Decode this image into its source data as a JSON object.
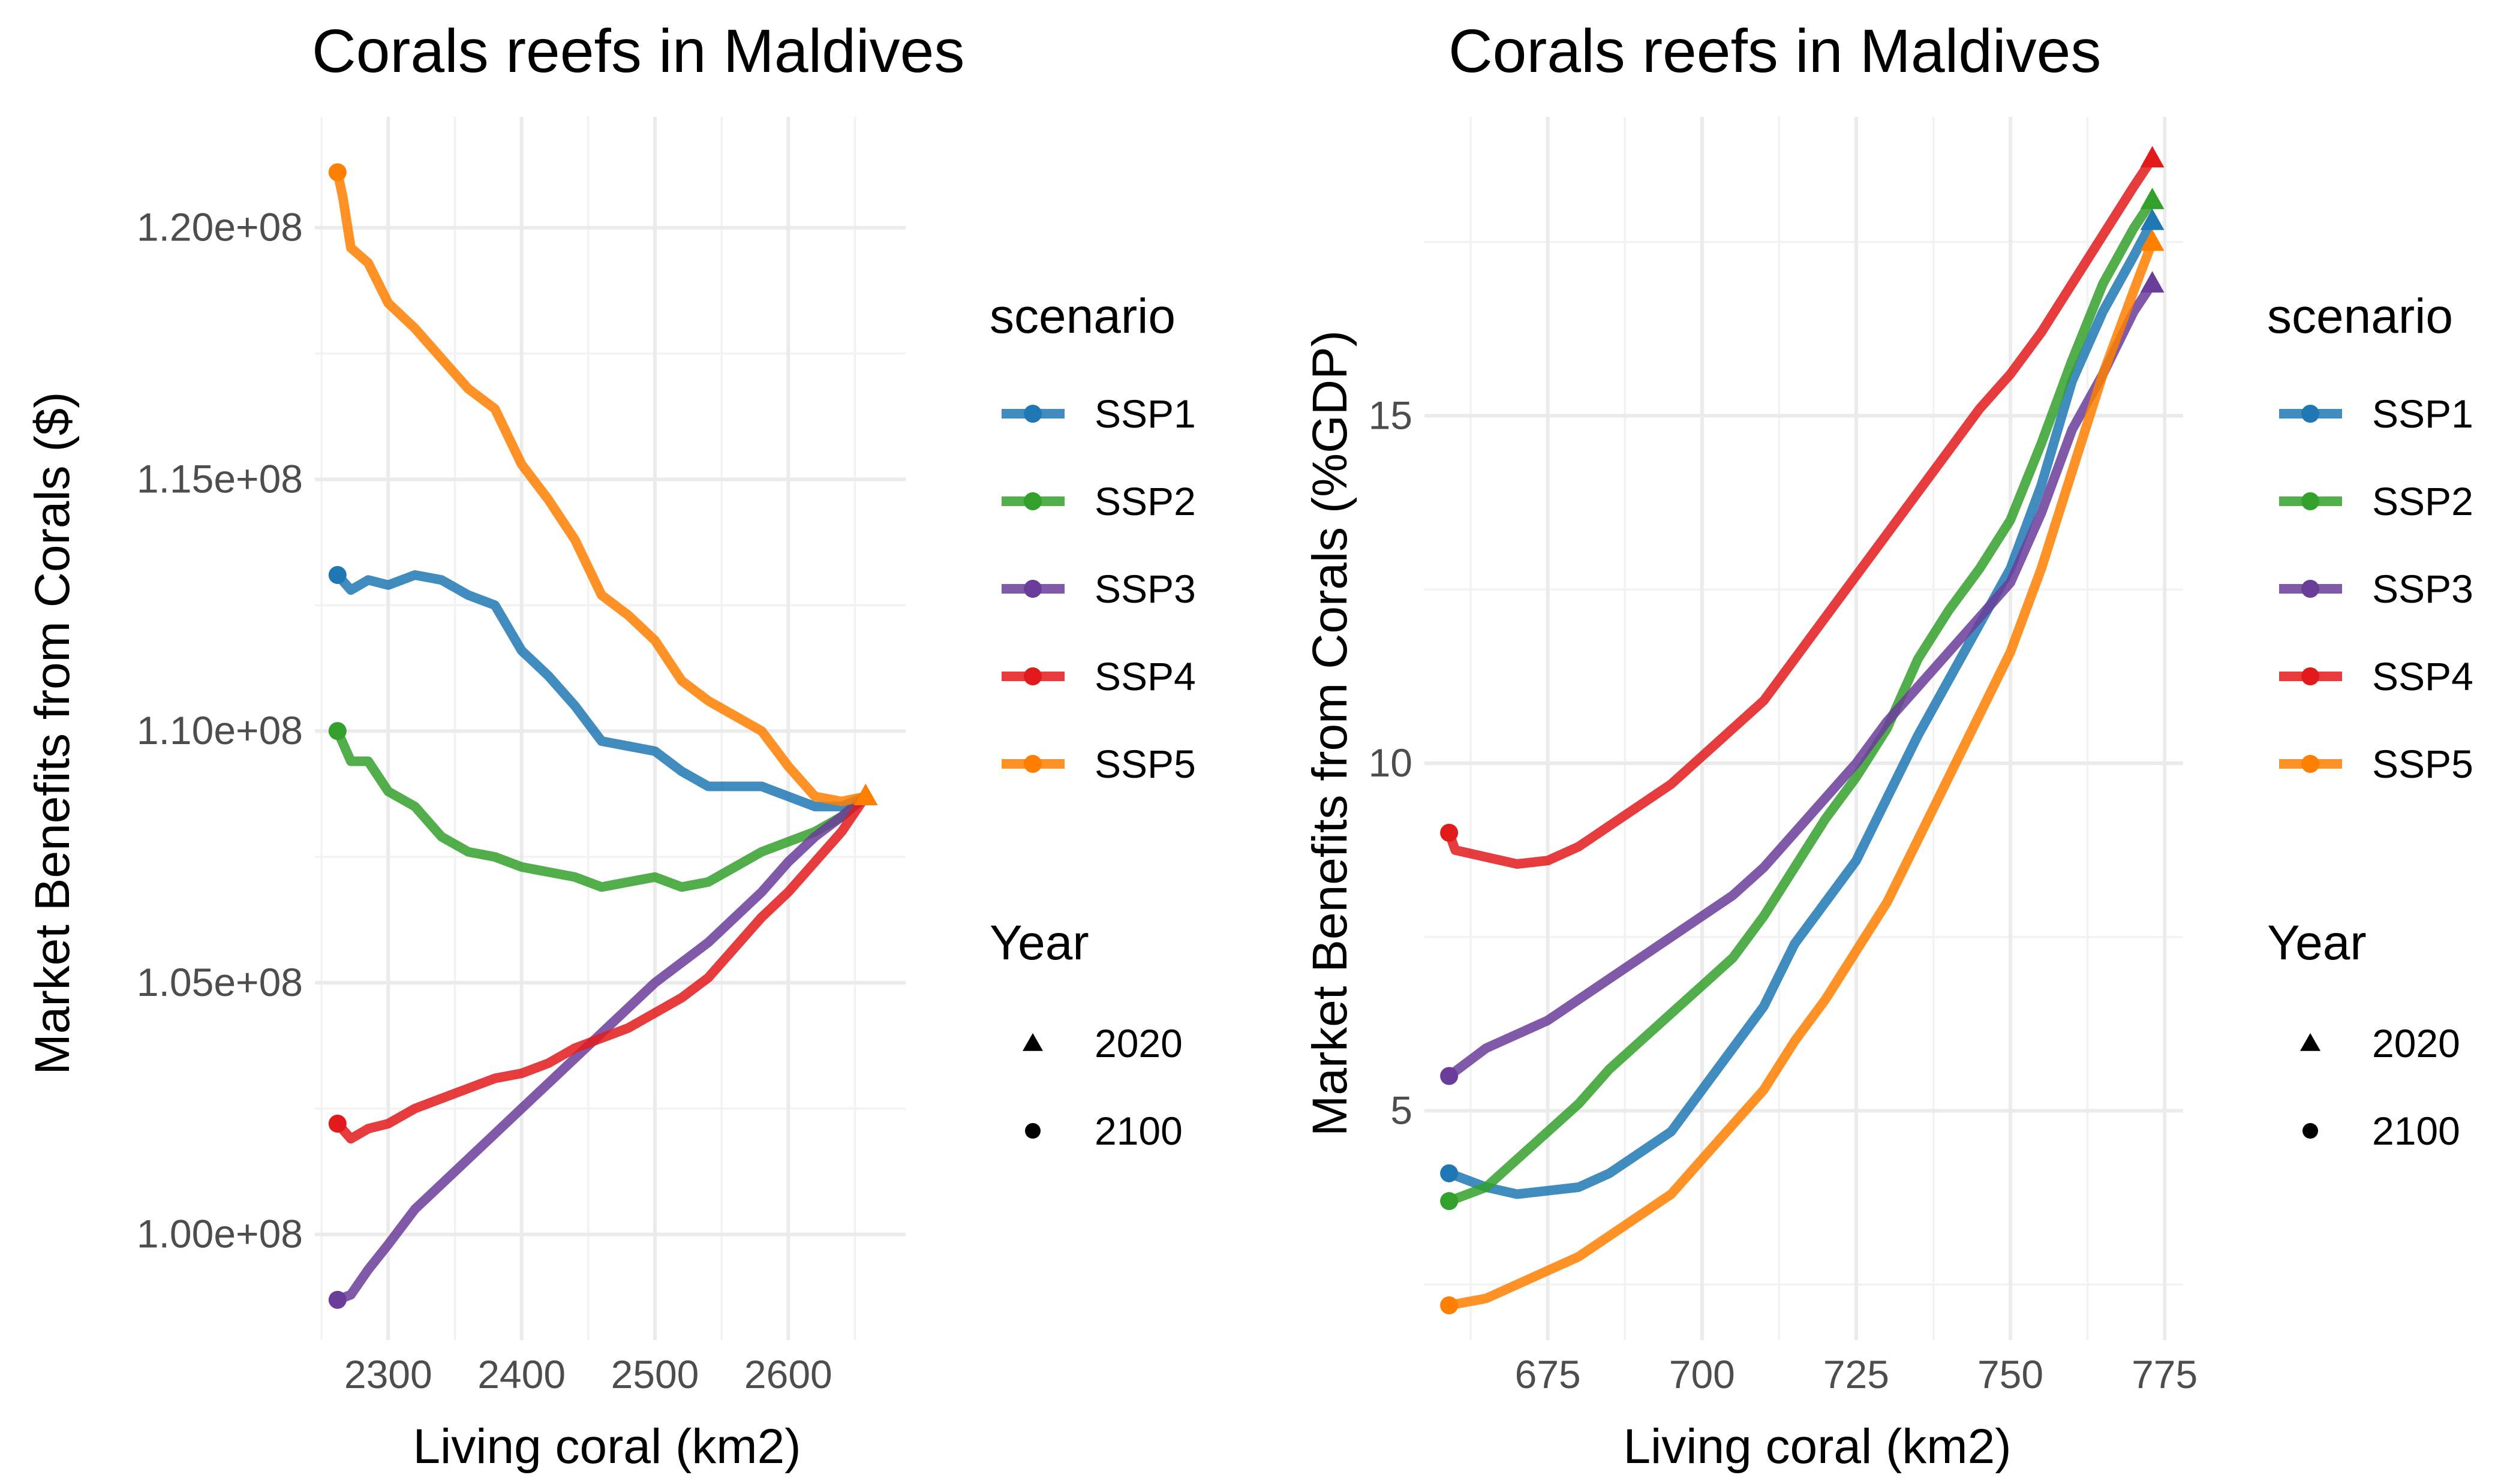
{
  "colors": {
    "SSP1": "#1f78b4",
    "SSP2": "#33a02c",
    "SSP3": "#6a3d9a",
    "SSP4": "#e31a1c",
    "SSP5": "#ff7f00"
  },
  "chart_data": [
    {
      "type": "line",
      "title": "Corals reefs in Maldives",
      "xlabel": "Living coral (km2)",
      "ylabel": "Market Benefits from Corals ($)",
      "xlim": [
        2245,
        2688
      ],
      "ylim": [
        97900000,
        122200000
      ],
      "xticks": [
        2300,
        2400,
        2500,
        2600
      ],
      "xtick_labels": [
        "2300",
        "2400",
        "2500",
        "2600"
      ],
      "yticks": [
        100000000,
        105000000,
        110000000,
        115000000,
        120000000
      ],
      "ytick_labels": [
        "1.00e+08",
        "1.05e+08",
        "1.10e+08",
        "1.15e+08",
        "1.20e+08"
      ],
      "grid": true,
      "legend": {
        "scenario_title": "scenario",
        "scenario_items": [
          "SSP1",
          "SSP2",
          "SSP3",
          "SSP4",
          "SSP5"
        ],
        "year_title": "Year",
        "year_items": [
          {
            "label": "2020",
            "marker": "triangle"
          },
          {
            "label": "2100",
            "marker": "circle"
          }
        ]
      },
      "series": [
        {
          "name": "SSP1",
          "x": [
            2262,
            2272,
            2285,
            2300,
            2320,
            2340,
            2360,
            2380,
            2400,
            2420,
            2440,
            2460,
            2480,
            2500,
            2520,
            2540,
            2560,
            2580,
            2600,
            2620,
            2640,
            2658
          ],
          "y": [
            113100000,
            112800000,
            113000000,
            112900000,
            113100000,
            113000000,
            112700000,
            112500000,
            111600000,
            111100000,
            110500000,
            109800000,
            109700000,
            109600000,
            109200000,
            108900000,
            108900000,
            108900000,
            108700000,
            108500000,
            108500000,
            108700000
          ],
          "end_marker": {
            "x": 2658,
            "y": 108700000
          },
          "start_marker": {
            "x": 2262,
            "y": 113100000
          }
        },
        {
          "name": "SSP2",
          "x": [
            2262,
            2272,
            2285,
            2300,
            2320,
            2340,
            2360,
            2380,
            2400,
            2420,
            2440,
            2460,
            2480,
            2500,
            2520,
            2540,
            2560,
            2580,
            2600,
            2620,
            2640,
            2658
          ],
          "y": [
            110000000,
            109400000,
            109400000,
            108800000,
            108500000,
            107900000,
            107600000,
            107500000,
            107300000,
            107200000,
            107100000,
            106900000,
            107000000,
            107100000,
            106900000,
            107000000,
            107300000,
            107600000,
            107800000,
            108000000,
            108300000,
            108700000
          ],
          "end_marker": {
            "x": 2658,
            "y": 108700000
          },
          "start_marker": {
            "x": 2262,
            "y": 110000000
          }
        },
        {
          "name": "SSP3",
          "x": [
            2262,
            2272,
            2285,
            2300,
            2320,
            2340,
            2360,
            2380,
            2400,
            2420,
            2440,
            2460,
            2480,
            2500,
            2520,
            2540,
            2560,
            2580,
            2600,
            2620,
            2640,
            2658
          ],
          "y": [
            98700000,
            98800000,
            99300000,
            99800000,
            100500000,
            101000000,
            101500000,
            102000000,
            102500000,
            103000000,
            103500000,
            104000000,
            104500000,
            105000000,
            105400000,
            105800000,
            106300000,
            106800000,
            107400000,
            107900000,
            108300000,
            108700000
          ],
          "end_marker": {
            "x": 2658,
            "y": 108700000
          },
          "start_marker": {
            "x": 2262,
            "y": 98700000
          }
        },
        {
          "name": "SSP4",
          "x": [
            2262,
            2272,
            2285,
            2300,
            2320,
            2340,
            2360,
            2380,
            2400,
            2420,
            2440,
            2460,
            2480,
            2500,
            2520,
            2540,
            2560,
            2580,
            2600,
            2620,
            2640,
            2658
          ],
          "y": [
            102200000,
            101900000,
            102100000,
            102200000,
            102500000,
            102700000,
            102900000,
            103100000,
            103200000,
            103400000,
            103700000,
            103900000,
            104100000,
            104400000,
            104700000,
            105100000,
            105700000,
            106300000,
            106800000,
            107400000,
            108000000,
            108700000
          ],
          "end_marker": {
            "x": 2658,
            "y": 108700000
          },
          "start_marker": {
            "x": 2262,
            "y": 102200000
          }
        },
        {
          "name": "SSP5",
          "x": [
            2262,
            2266,
            2272,
            2285,
            2300,
            2320,
            2340,
            2360,
            2380,
            2400,
            2420,
            2440,
            2460,
            2480,
            2500,
            2520,
            2540,
            2560,
            2580,
            2600,
            2620,
            2640,
            2658
          ],
          "y": [
            121100000,
            120600000,
            119600000,
            119300000,
            118500000,
            118000000,
            117400000,
            116800000,
            116400000,
            115300000,
            114600000,
            113800000,
            112700000,
            112300000,
            111800000,
            111000000,
            110600000,
            110300000,
            110000000,
            109300000,
            108700000,
            108600000,
            108700000
          ],
          "end_marker": {
            "x": 2658,
            "y": 108700000
          },
          "start_marker": {
            "x": 2262,
            "y": 121100000
          }
        }
      ]
    },
    {
      "type": "line",
      "title": "Corals reefs in Maldives",
      "xlabel": "Living coral (km2)",
      "ylabel": "Market Benefits from Corals (%GDP)",
      "xlim": [
        655,
        778
      ],
      "ylim": [
        1.7,
        19.3
      ],
      "xticks": [
        675,
        700,
        725,
        750,
        775
      ],
      "xtick_labels": [
        "675",
        "700",
        "725",
        "750",
        "775"
      ],
      "yticks": [
        5,
        10,
        15
      ],
      "ytick_labels": [
        "5",
        "10",
        "15"
      ],
      "grid": true,
      "legend": {
        "scenario_title": "scenario",
        "scenario_items": [
          "SSP1",
          "SSP2",
          "SSP3",
          "SSP4",
          "SSP5"
        ],
        "year_title": "Year",
        "year_items": [
          {
            "label": "2020",
            "marker": "triangle"
          },
          {
            "label": "2100",
            "marker": "circle"
          }
        ]
      },
      "series": [
        {
          "name": "SSP1",
          "x": [
            659,
            665,
            670,
            675,
            680,
            685,
            690,
            695,
            700,
            705,
            710,
            715,
            720,
            725,
            730,
            735,
            740,
            745,
            750,
            755,
            760,
            765,
            770,
            773
          ],
          "y": [
            4.1,
            3.9,
            3.8,
            3.85,
            3.9,
            4.1,
            4.4,
            4.7,
            5.3,
            5.9,
            6.5,
            7.4,
            8.0,
            8.6,
            9.5,
            10.4,
            11.2,
            12.0,
            12.8,
            14.0,
            15.5,
            16.5,
            17.3,
            17.8
          ],
          "end_marker": {
            "x": 773,
            "y": 17.8
          },
          "start_marker": {
            "x": 659,
            "y": 4.1
          }
        },
        {
          "name": "SSP2",
          "x": [
            659,
            665,
            670,
            675,
            680,
            685,
            690,
            695,
            700,
            705,
            710,
            715,
            720,
            725,
            730,
            735,
            740,
            745,
            750,
            755,
            760,
            765,
            770,
            773
          ],
          "y": [
            3.7,
            3.9,
            4.3,
            4.7,
            5.1,
            5.6,
            6.0,
            6.4,
            6.8,
            7.2,
            7.8,
            8.5,
            9.2,
            9.8,
            10.5,
            11.5,
            12.2,
            12.8,
            13.5,
            14.6,
            15.8,
            16.9,
            17.7,
            18.1
          ],
          "end_marker": {
            "x": 773,
            "y": 18.1
          },
          "start_marker": {
            "x": 659,
            "y": 3.7
          }
        },
        {
          "name": "SSP3",
          "x": [
            659,
            665,
            670,
            675,
            680,
            685,
            690,
            695,
            700,
            705,
            710,
            715,
            720,
            725,
            730,
            735,
            740,
            745,
            750,
            755,
            760,
            765,
            770,
            773
          ],
          "y": [
            5.5,
            5.9,
            6.1,
            6.3,
            6.6,
            6.9,
            7.2,
            7.5,
            7.8,
            8.1,
            8.5,
            9.0,
            9.5,
            10.0,
            10.6,
            11.1,
            11.6,
            12.1,
            12.6,
            13.6,
            14.8,
            15.6,
            16.5,
            16.9
          ],
          "end_marker": {
            "x": 773,
            "y": 16.9
          },
          "start_marker": {
            "x": 659,
            "y": 5.5
          }
        },
        {
          "name": "SSP4",
          "x": [
            659,
            660,
            665,
            670,
            675,
            680,
            685,
            690,
            695,
            700,
            705,
            710,
            715,
            720,
            725,
            730,
            735,
            740,
            745,
            750,
            755,
            760,
            765,
            770,
            773
          ],
          "y": [
            9.0,
            8.75,
            8.65,
            8.55,
            8.6,
            8.8,
            9.1,
            9.4,
            9.7,
            10.1,
            10.5,
            10.9,
            11.5,
            12.1,
            12.7,
            13.3,
            13.9,
            14.5,
            15.1,
            15.6,
            16.2,
            16.9,
            17.6,
            18.3,
            18.7
          ],
          "end_marker": {
            "x": 773,
            "y": 18.7
          },
          "start_marker": {
            "x": 659,
            "y": 9.0
          }
        },
        {
          "name": "SSP5",
          "x": [
            659,
            665,
            670,
            675,
            680,
            685,
            690,
            695,
            700,
            705,
            710,
            715,
            720,
            725,
            730,
            735,
            740,
            745,
            750,
            755,
            760,
            765,
            770,
            773
          ],
          "y": [
            2.2,
            2.3,
            2.5,
            2.7,
            2.9,
            3.2,
            3.5,
            3.8,
            4.3,
            4.8,
            5.3,
            6.0,
            6.6,
            7.3,
            8.0,
            8.9,
            9.8,
            10.7,
            11.6,
            12.8,
            14.2,
            15.6,
            16.8,
            17.5
          ],
          "end_marker": {
            "x": 773,
            "y": 17.5
          },
          "start_marker": {
            "x": 659,
            "y": 2.2
          }
        }
      ]
    }
  ]
}
